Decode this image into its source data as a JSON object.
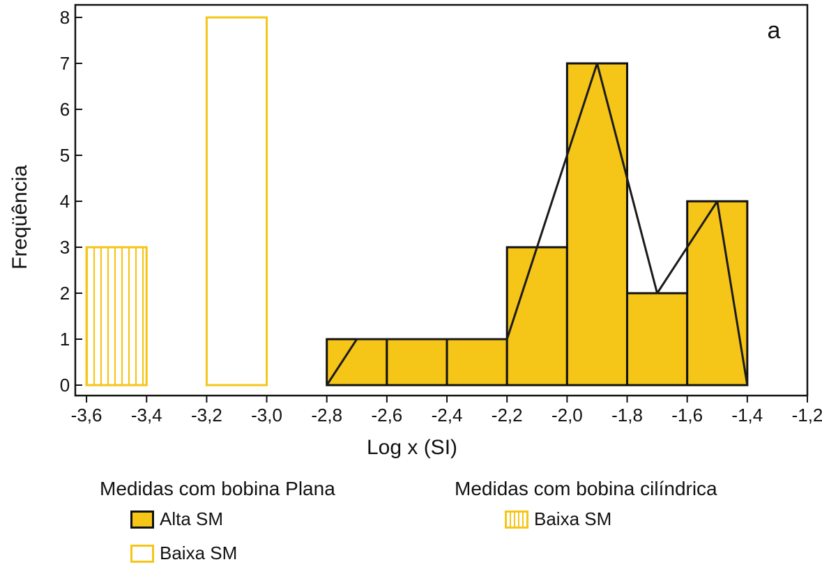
{
  "chart_data": {
    "type": "bar",
    "panel_label": "a",
    "xlabel": "Log x (SI)",
    "ylabel": "Freqüência",
    "xlim": [
      -3.7,
      -1.2
    ],
    "ylim": [
      0,
      8.3
    ],
    "x_ticks": [
      -3.6,
      -3.4,
      -3.2,
      -3.0,
      -2.8,
      -2.6,
      -2.4,
      -2.2,
      -2.0,
      -1.8,
      -1.6,
      -1.4,
      -1.2
    ],
    "x_tick_labels": [
      "-3,6",
      "-3,4",
      "-3,2",
      "-3,0",
      "-2,8",
      "-2,6",
      "-2,4",
      "-2,2",
      "-2,0",
      "-1,8",
      "-1,6",
      "-1,4",
      "-1,2"
    ],
    "y_ticks": [
      0,
      1,
      2,
      3,
      4,
      5,
      6,
      7,
      8
    ],
    "y_tick_labels": [
      "0",
      "1",
      "2",
      "3",
      "4",
      "5",
      "6",
      "7",
      "8"
    ],
    "grid": false,
    "series": [
      {
        "name": "Alta SM",
        "group": "Medidas com bobina Plana",
        "style": "filled",
        "color": "#f5c518",
        "bins": [
          {
            "from": -2.8,
            "to": -2.6,
            "value": 1
          },
          {
            "from": -2.6,
            "to": -2.4,
            "value": 1
          },
          {
            "from": -2.4,
            "to": -2.2,
            "value": 1
          },
          {
            "from": -2.2,
            "to": -2.0,
            "value": 3
          },
          {
            "from": -2.0,
            "to": -1.8,
            "value": 7
          },
          {
            "from": -1.8,
            "to": -1.6,
            "value": 2
          },
          {
            "from": -1.6,
            "to": -1.4,
            "value": 4
          }
        ]
      },
      {
        "name": "Baixa SM",
        "group": "Medidas com bobina Plana",
        "style": "outline",
        "color": "#f5c518",
        "bins": [
          {
            "from": -3.2,
            "to": -3.0,
            "value": 8
          }
        ]
      },
      {
        "name": "Baixa SM",
        "group": "Medidas com bobina cilíndrica",
        "style": "hatched",
        "color": "#f5c518",
        "bins": [
          {
            "from": -3.6,
            "to": -3.4,
            "value": 3
          }
        ]
      }
    ],
    "frequency_polygon": {
      "x": [
        -2.8,
        -2.7,
        -2.5,
        -2.3,
        -2.2,
        -2.1,
        -1.9,
        -1.7,
        -1.5,
        -1.4
      ],
      "y": [
        0,
        1,
        1,
        1,
        1,
        3,
        7,
        2,
        4,
        0
      ]
    }
  },
  "legend": {
    "group_plana_title": "Medidas com bobina Plana",
    "group_cilindrica_title": "Medidas com bobina cilíndrica",
    "alta_sm_label": "Alta SM",
    "baixa_sm_plana_label": "Baixa SM",
    "baixa_sm_cilindrica_label": "Baixa SM"
  },
  "colors": {
    "bar_fill": "#f5c518",
    "bar_stroke": "#111111",
    "outline": "#f5c518"
  }
}
